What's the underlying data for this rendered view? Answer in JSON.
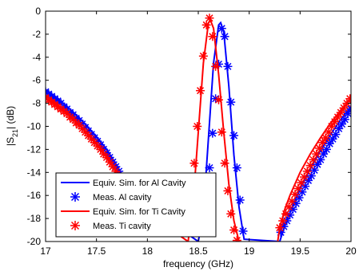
{
  "chart_data": {
    "type": "line",
    "title": "",
    "xlabel": "frequency (GHz)",
    "ylabel": "|S21| (dB)",
    "ylabel_parts": {
      "pre": "|S",
      "sub": "21",
      "post": "| (dB)"
    },
    "xlim": [
      17,
      20
    ],
    "ylim": [
      -20,
      0
    ],
    "xticks": [
      17,
      17.5,
      18,
      18.5,
      19,
      19.5,
      20
    ],
    "xtick_labels": [
      "17",
      "17.5",
      "18",
      "18.5",
      "19",
      "19.5",
      "20"
    ],
    "yticks": [
      0,
      -2,
      -4,
      -6,
      -8,
      -10,
      -12,
      -14,
      -16,
      -18,
      -20
    ],
    "ytick_labels": [
      "0",
      "-2",
      "-4",
      "-6",
      "-8",
      "-10",
      "-12",
      "-14",
      "-16",
      "-18",
      "-20"
    ],
    "grid": false,
    "legend_position": "bottom-left",
    "series": [
      {
        "name": "Equiv. Sim. for Al Cavity",
        "color": "#0000ff",
        "style": "line",
        "x": [
          17.0,
          17.1,
          17.2,
          17.3,
          17.4,
          17.5,
          17.6,
          17.7,
          17.8,
          17.85,
          18.5,
          18.55,
          18.6,
          18.65,
          18.7,
          18.72,
          18.75,
          18.8,
          18.85,
          18.9,
          18.95,
          19.3,
          19.35,
          19.4,
          19.5,
          19.6,
          19.7,
          19.8,
          19.9,
          20.0
        ],
        "y": [
          -6.8,
          -7.5,
          -8.2,
          -9.0,
          -9.9,
          -10.9,
          -12.0,
          -13.4,
          -15.0,
          -16.0,
          -20.0,
          -17.5,
          -11.0,
          -4.5,
          -1.2,
          -1.0,
          -1.8,
          -6.5,
          -12.5,
          -17.0,
          -19.8,
          -20.0,
          -18.6,
          -17.5,
          -15.4,
          -13.7,
          -12.1,
          -10.7,
          -9.4,
          -8.3
        ]
      },
      {
        "name": "Meas. Al cavity",
        "color": "#0000ff",
        "style": "marker",
        "marker": "asterisk",
        "x": [
          17.0,
          17.03,
          17.06,
          17.09,
          17.12,
          17.15,
          17.18,
          17.21,
          17.24,
          17.27,
          17.3,
          17.33,
          17.36,
          17.39,
          17.42,
          17.45,
          17.48,
          17.51,
          17.54,
          17.57,
          17.6,
          17.63,
          17.66,
          17.69,
          17.72,
          17.75,
          17.78,
          17.81,
          17.84,
          17.87,
          18.55,
          18.58,
          18.61,
          18.64,
          18.67,
          18.7,
          18.73,
          18.76,
          18.79,
          18.82,
          18.85,
          18.88,
          18.91,
          18.94,
          19.31,
          19.34,
          19.37,
          19.4,
          19.43,
          19.46,
          19.49,
          19.52,
          19.55,
          19.58,
          19.61,
          19.64,
          19.67,
          19.7,
          19.73,
          19.76,
          19.79,
          19.82,
          19.85,
          19.88,
          19.91,
          19.94,
          19.97,
          20.0
        ],
        "y": [
          -7.0,
          -7.2,
          -7.4,
          -7.6,
          -7.8,
          -8.0,
          -8.3,
          -8.5,
          -8.8,
          -9.0,
          -9.3,
          -9.5,
          -9.8,
          -10.1,
          -10.4,
          -10.7,
          -11.0,
          -11.3,
          -11.6,
          -12.0,
          -12.3,
          -12.7,
          -13.1,
          -13.5,
          -13.9,
          -14.4,
          -14.9,
          -15.4,
          -16.0,
          -16.6,
          -18.8,
          -16.4,
          -13.6,
          -10.6,
          -7.6,
          -4.6,
          -1.5,
          -2.2,
          -4.8,
          -7.9,
          -10.8,
          -13.6,
          -16.4,
          -19.1,
          -19.2,
          -18.7,
          -18.2,
          -17.7,
          -17.2,
          -16.7,
          -16.2,
          -15.7,
          -15.2,
          -14.7,
          -14.3,
          -13.8,
          -13.3,
          -12.9,
          -12.4,
          -12.0,
          -11.5,
          -11.1,
          -10.7,
          -10.2,
          -9.8,
          -9.4,
          -8.9,
          -8.5
        ]
      },
      {
        "name": "Equiv. Sim. for Ti Cavity",
        "color": "#ff0000",
        "style": "line",
        "x": [
          17.0,
          17.1,
          17.2,
          17.3,
          17.4,
          17.5,
          17.6,
          17.7,
          17.8,
          17.85,
          18.4,
          18.45,
          18.5,
          18.55,
          18.6,
          18.62,
          18.65,
          18.7,
          18.75,
          18.8,
          18.85,
          18.9,
          19.28,
          19.3,
          19.35,
          19.4,
          19.5,
          19.6,
          19.7,
          19.8,
          19.9,
          20.0
        ],
        "y": [
          -7.3,
          -8.0,
          -8.8,
          -9.6,
          -10.5,
          -11.5,
          -12.6,
          -14.0,
          -15.6,
          -16.6,
          -20.0,
          -16.5,
          -10.5,
          -4.5,
          -1.0,
          -0.8,
          -1.5,
          -5.5,
          -10.5,
          -15.0,
          -18.2,
          -20.0,
          -20.0,
          -18.8,
          -17.2,
          -16.0,
          -14.0,
          -12.4,
          -11.0,
          -9.7,
          -8.6,
          -7.6
        ]
      },
      {
        "name": "Meas. Ti cavity",
        "color": "#ff0000",
        "style": "marker",
        "marker": "asterisk",
        "x": [
          17.0,
          17.03,
          17.06,
          17.09,
          17.12,
          17.15,
          17.18,
          17.21,
          17.24,
          17.27,
          17.3,
          17.33,
          17.36,
          17.39,
          17.42,
          17.45,
          17.48,
          17.51,
          17.54,
          17.57,
          17.6,
          17.63,
          17.66,
          17.69,
          17.72,
          17.75,
          17.78,
          17.81,
          17.84,
          17.87,
          17.9,
          18.4,
          18.43,
          18.46,
          18.49,
          18.52,
          18.55,
          18.58,
          18.61,
          18.64,
          18.67,
          18.7,
          18.73,
          18.76,
          18.79,
          18.82,
          18.85,
          18.88,
          19.3,
          19.33,
          19.36,
          19.39,
          19.42,
          19.45,
          19.48,
          19.51,
          19.54,
          19.57,
          19.6,
          19.63,
          19.66,
          19.69,
          19.72,
          19.75,
          19.78,
          19.81,
          19.84,
          19.87,
          19.9,
          19.93,
          19.96,
          19.99
        ],
        "y": [
          -7.5,
          -7.7,
          -7.9,
          -8.1,
          -8.3,
          -8.5,
          -8.7,
          -8.9,
          -9.2,
          -9.4,
          -9.7,
          -9.9,
          -10.2,
          -10.5,
          -10.8,
          -11.1,
          -11.4,
          -11.7,
          -12.0,
          -12.4,
          -12.7,
          -13.1,
          -13.5,
          -13.9,
          -14.3,
          -14.8,
          -15.3,
          -15.8,
          -16.4,
          -17.0,
          -17.6,
          -19.0,
          -16.4,
          -13.2,
          -10.0,
          -6.9,
          -3.9,
          -1.2,
          -0.6,
          -2.2,
          -4.8,
          -7.7,
          -10.5,
          -13.2,
          -15.6,
          -17.6,
          -19.0,
          -19.9,
          -18.8,
          -18.2,
          -17.6,
          -17.0,
          -16.5,
          -15.9,
          -15.4,
          -14.9,
          -14.4,
          -13.9,
          -13.4,
          -12.9,
          -12.4,
          -11.9,
          -11.4,
          -11.0,
          -10.5,
          -10.0,
          -9.6,
          -9.2,
          -8.8,
          -8.4,
          -8.0,
          -7.6
        ]
      }
    ]
  }
}
